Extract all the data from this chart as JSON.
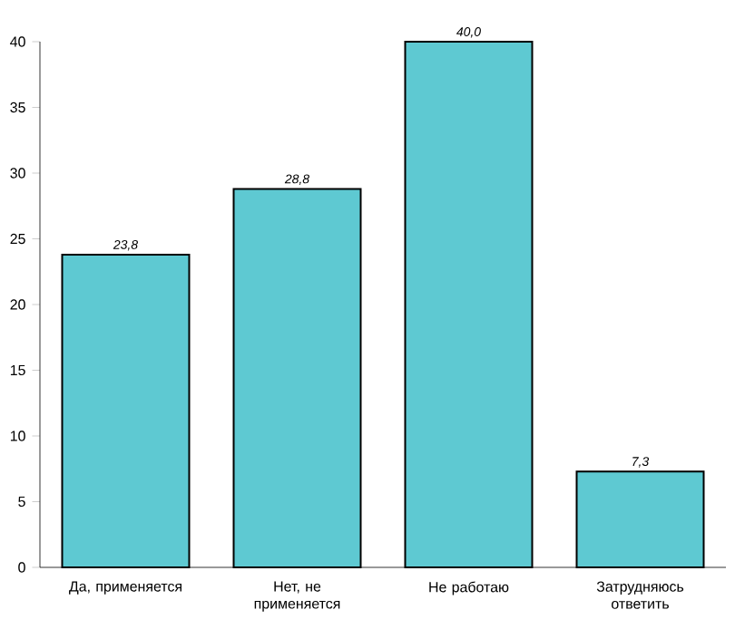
{
  "chart_data": {
    "type": "bar",
    "categories": [
      "Да, применяется",
      "Нет, не применяется",
      "Не работаю",
      "Затрудняюсь ответить"
    ],
    "values": [
      23.8,
      28.8,
      40.0,
      7.3
    ],
    "value_labels": [
      "23,8",
      "28,8",
      "40,0",
      "7,3"
    ],
    "color": "#5ec9d2",
    "ylim": [
      0,
      40
    ],
    "yticks": [
      0,
      5,
      10,
      15,
      20,
      25,
      30,
      35,
      40
    ],
    "grid": false
  }
}
